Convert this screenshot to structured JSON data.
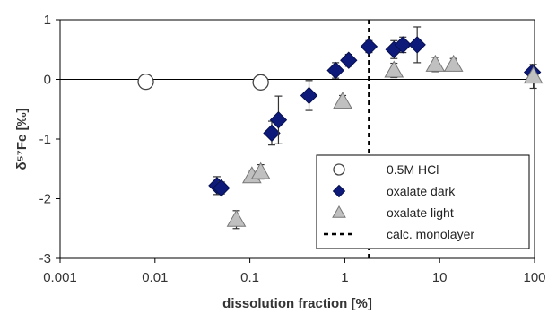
{
  "chart_data": {
    "type": "scatter",
    "xlabel": "dissolution fraction [%]",
    "ylabel": "δ⁵⁷Fe [‰]",
    "x_scale": "log",
    "xlim": [
      0.001,
      100
    ],
    "ylim": [
      -3,
      1
    ],
    "x_ticks": [
      0.001,
      0.01,
      0.1,
      1,
      10,
      100
    ],
    "x_tick_labels": [
      "0.001",
      "0.01",
      "0.1",
      "1",
      "10",
      "100"
    ],
    "y_ticks": [
      1,
      0,
      -1,
      -2,
      -3
    ],
    "y_tick_labels": [
      "1",
      "0",
      "-1",
      "-2",
      "-3"
    ],
    "zero_line": true,
    "grid": false,
    "legend_position": "bottom-right",
    "reference_lines": [
      {
        "name": "calc. monolayer",
        "x": 1.8,
        "style": "dashed",
        "color": "#000000"
      }
    ],
    "series": [
      {
        "name": "0.5M HCl",
        "marker": "circle",
        "color": "#ffffff",
        "points": [
          {
            "x": 0.008,
            "y": -0.04,
            "err": 0.08
          },
          {
            "x": 0.13,
            "y": -0.05,
            "err": 0.08
          }
        ]
      },
      {
        "name": "oxalate dark",
        "marker": "diamond",
        "color": "#0d1a7a",
        "points": [
          {
            "x": 0.045,
            "y": -1.78,
            "err": 0.15
          },
          {
            "x": 0.05,
            "y": -1.82,
            "err": 0.1
          },
          {
            "x": 0.17,
            "y": -0.9,
            "err": 0.2
          },
          {
            "x": 0.2,
            "y": -0.68,
            "err": 0.4
          },
          {
            "x": 0.42,
            "y": -0.27,
            "err": 0.25
          },
          {
            "x": 0.8,
            "y": 0.15,
            "err": 0.13
          },
          {
            "x": 1.1,
            "y": 0.32,
            "err": 0.1
          },
          {
            "x": 1.8,
            "y": 0.55,
            "err": 0.1
          },
          {
            "x": 3.3,
            "y": 0.5,
            "err": 0.15
          },
          {
            "x": 4.1,
            "y": 0.58,
            "err": 0.13
          },
          {
            "x": 5.8,
            "y": 0.58,
            "err": 0.3
          },
          {
            "x": 95,
            "y": 0.12,
            "err": 0.05
          }
        ]
      },
      {
        "name": "oxalate light",
        "marker": "triangle",
        "color": "#c0c0c0",
        "points": [
          {
            "x": 0.072,
            "y": -2.35,
            "err": 0.15
          },
          {
            "x": 0.105,
            "y": -1.62,
            "err": 0.1
          },
          {
            "x": 0.13,
            "y": -1.55,
            "err": 0.12
          },
          {
            "x": 0.95,
            "y": -0.37,
            "err": 0.1
          },
          {
            "x": 3.3,
            "y": 0.15,
            "err": 0.12
          },
          {
            "x": 9.0,
            "y": 0.25,
            "err": 0.12
          },
          {
            "x": 14,
            "y": 0.25,
            "err": 0.1
          },
          {
            "x": 97,
            "y": 0.05,
            "err": 0.2
          }
        ]
      }
    ]
  }
}
